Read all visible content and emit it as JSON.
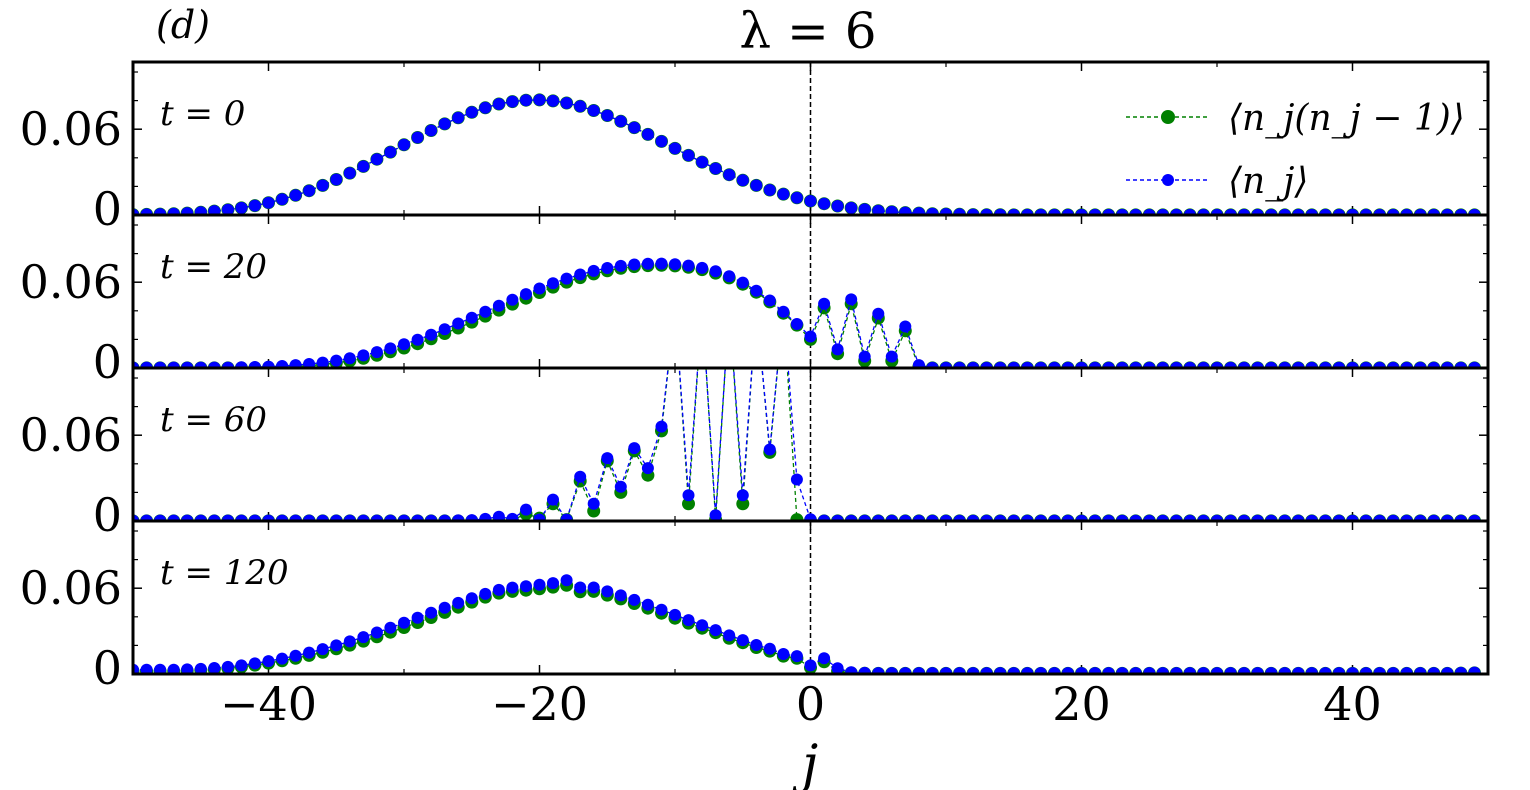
{
  "panel_tag": "(d)",
  "title": "λ = 6",
  "xlabel": "j",
  "ytick_labels": [
    "0",
    "0.06"
  ],
  "xtick_labels": [
    "−40",
    "−20",
    "0",
    "20",
    "40"
  ],
  "legend": [
    {
      "label": "⟨n_j(n_j − 1)⟩",
      "color": "#008000",
      "series": "nn1"
    },
    {
      "label": "⟨n_j⟩",
      "color": "#0000ff",
      "series": "n"
    }
  ],
  "chart_data": {
    "type": "scatter",
    "xlim": [
      -50,
      50
    ],
    "ylim": [
      0,
      0.107
    ],
    "yticks": [
      0,
      0.06
    ],
    "xticks": [
      -40,
      -20,
      0,
      20,
      40
    ],
    "vline_x": 0,
    "panels": [
      {
        "label": "t = 0",
        "x_start": -50,
        "nn1": [
          0.0003,
          0.0004,
          0.0006,
          0.0009,
          0.0013,
          0.0019,
          0.0027,
          0.0037,
          0.005,
          0.0066,
          0.0086,
          0.011,
          0.0138,
          0.017,
          0.0207,
          0.0248,
          0.0293,
          0.034,
          0.039,
          0.044,
          0.0491,
          0.0542,
          0.0591,
          0.0637,
          0.068,
          0.0718,
          0.075,
          0.0776,
          0.0793,
          0.0803,
          0.0805,
          0.0798,
          0.0783,
          0.076,
          0.0731,
          0.0696,
          0.0655,
          0.0611,
          0.0564,
          0.0515,
          0.0466,
          0.0417,
          0.037,
          0.0325,
          0.0282,
          0.0243,
          0.0207,
          0.0175,
          0.0146,
          0.012,
          0.0098,
          0.0079,
          0.0063,
          0.005,
          0.0039,
          0.003,
          0.0023,
          0.0017,
          0.0013,
          0.0009,
          0.0007,
          0.0005,
          0.0003,
          0.0002,
          0.0002,
          0.0001,
          0.0001,
          0.0001,
          0.0001,
          0.0001,
          0.0001,
          0.0001,
          0.0001,
          0.0001,
          0.0001,
          0.0001,
          0.0001,
          0.0001,
          0.0001,
          0.0001,
          0.0001,
          0.0001,
          0.0001,
          0.0001,
          0.0001,
          0.0001,
          0.0001,
          0.0001,
          0.0001,
          0.0001,
          0.0001,
          0.0001,
          0.0001,
          0.0001,
          0.0001,
          0.0001,
          0.0001,
          0.0001,
          0.0001,
          0.0001
        ],
        "n": [
          0.0003,
          0.0004,
          0.0006,
          0.0009,
          0.0013,
          0.0019,
          0.0027,
          0.0037,
          0.005,
          0.0066,
          0.0086,
          0.011,
          0.0138,
          0.017,
          0.0207,
          0.0248,
          0.0293,
          0.034,
          0.039,
          0.044,
          0.0491,
          0.0542,
          0.0591,
          0.0637,
          0.068,
          0.0718,
          0.075,
          0.0776,
          0.0793,
          0.0803,
          0.0805,
          0.0798,
          0.0783,
          0.076,
          0.0731,
          0.0696,
          0.0655,
          0.0611,
          0.0564,
          0.0515,
          0.0466,
          0.0417,
          0.037,
          0.0325,
          0.0282,
          0.0243,
          0.0207,
          0.0175,
          0.0146,
          0.012,
          0.0098,
          0.0079,
          0.0063,
          0.005,
          0.0039,
          0.003,
          0.0023,
          0.0017,
          0.0013,
          0.0009,
          0.0007,
          0.0005,
          0.0003,
          0.0002,
          0.0002,
          0.0001,
          0.0001,
          0.0001,
          0.0001,
          0.0001,
          0.0001,
          0.0001,
          0.0001,
          0.0001,
          0.0001,
          0.0001,
          0.0001,
          0.0001,
          0.0001,
          0.0001,
          0.0001,
          0.0001,
          0.0001,
          0.0001,
          0.0001,
          0.0001,
          0.0001,
          0.0001,
          0.0001,
          0.0001,
          0.0001,
          0.0001,
          0.0001,
          0.0001,
          0.0001,
          0.0001,
          0.0001,
          0.0001,
          0.0001,
          0.0001
        ]
      },
      {
        "label": "t = 20",
        "x_start": -50,
        "nn1": [
          0.0001,
          0.0001,
          0.0001,
          0.0001,
          0.0001,
          0.0001,
          0.0001,
          0.0001,
          0.0001,
          0.0002,
          0.0003,
          0.0006,
          0.001,
          0.0016,
          0.0024,
          0.0036,
          0.005,
          0.0068,
          0.0089,
          0.0113,
          0.014,
          0.017,
          0.0204,
          0.0241,
          0.028,
          0.0321,
          0.0363,
          0.0405,
          0.0447,
          0.0488,
          0.0528,
          0.0566,
          0.0601,
          0.0632,
          0.0658,
          0.068,
          0.0697,
          0.0709,
          0.0716,
          0.0718,
          0.0714,
          0.0704,
          0.0688,
          0.0664,
          0.063,
          0.0586,
          0.053,
          0.0462,
          0.0383,
          0.03,
          0.02,
          0.042,
          0.01,
          0.045,
          0.005,
          0.035,
          0.005,
          0.026,
          0.0008,
          0.0001,
          0.0001,
          0.0001,
          0.0001,
          0.0001,
          0.0001,
          0.0001,
          0.0001,
          0.0001,
          0.0001,
          0.0001,
          0.0001,
          0.0001,
          0.0001,
          0.0001,
          0.0001,
          0.0001,
          0.0001,
          0.0001,
          0.0001,
          0.0001,
          0.0001,
          0.0001,
          0.0001,
          0.0001,
          0.0001,
          0.0001,
          0.0001,
          0.0001,
          0.0001,
          0.0001,
          0.0001,
          0.0001,
          0.0001,
          0.0001,
          0.0001,
          0.0001,
          0.0001,
          0.0001,
          0.0001,
          0.0001
        ],
        "n": [
          0.0003,
          0.0003,
          0.0003,
          0.0003,
          0.0003,
          0.0003,
          0.0003,
          0.0003,
          0.0005,
          0.0007,
          0.001,
          0.0014,
          0.002,
          0.0028,
          0.0038,
          0.0052,
          0.0068,
          0.0088,
          0.0111,
          0.0137,
          0.0166,
          0.0198,
          0.0233,
          0.0271,
          0.0311,
          0.0352,
          0.0394,
          0.0436,
          0.0477,
          0.0517,
          0.0556,
          0.0592,
          0.0625,
          0.0654,
          0.0679,
          0.0699,
          0.0714,
          0.0724,
          0.0729,
          0.073,
          0.0726,
          0.0716,
          0.07,
          0.0676,
          0.0642,
          0.0597,
          0.054,
          0.0472,
          0.0393,
          0.0308,
          0.022,
          0.045,
          0.013,
          0.048,
          0.008,
          0.038,
          0.008,
          0.029,
          0.002,
          0.0002,
          0.0002,
          0.0002,
          0.0002,
          0.0002,
          0.0002,
          0.0002,
          0.0002,
          0.0002,
          0.0002,
          0.0002,
          0.0002,
          0.0002,
          0.0002,
          0.0002,
          0.0002,
          0.0002,
          0.0002,
          0.0002,
          0.0002,
          0.0002,
          0.0002,
          0.0002,
          0.0002,
          0.0002,
          0.0002,
          0.0002,
          0.0002,
          0.0002,
          0.0002,
          0.0002,
          0.0002,
          0.0002,
          0.0002,
          0.0002,
          0.0002,
          0.0002,
          0.0002,
          0.0002,
          0.0002,
          0.0002
        ]
      },
      {
        "label": "t = 60",
        "x_start": -50,
        "nn1": [
          0.0001,
          0.0001,
          0.0001,
          0.0001,
          0.0001,
          0.0001,
          0.0001,
          0.0001,
          0.0001,
          0.0001,
          0.0001,
          0.0001,
          0.0001,
          0.0001,
          0.0001,
          0.0001,
          0.0001,
          0.0001,
          0.0001,
          0.0001,
          0.0001,
          0.0001,
          0.0001,
          0.0001,
          0.0001,
          0.0001,
          0.0001,
          0.0002,
          0.0006,
          0.005,
          0.002,
          0.012,
          0.001,
          0.028,
          0.007,
          0.042,
          0.02,
          0.049,
          0.032,
          0.063,
          0.15,
          0.012,
          0.15,
          0.001,
          0.15,
          0.012,
          0.15,
          0.048,
          0.15,
          0.001,
          0.0005,
          0.0001,
          0.0001,
          0.0001,
          0.0001,
          0.0001,
          0.0001,
          0.0001,
          0.0001,
          0.0001,
          0.0001,
          0.0001,
          0.0001,
          0.0001,
          0.0001,
          0.0001,
          0.0001,
          0.0001,
          0.0001,
          0.0001,
          0.0001,
          0.0001,
          0.0001,
          0.0001,
          0.0001,
          0.0001,
          0.0001,
          0.0001,
          0.0001,
          0.0001,
          0.0001,
          0.0001,
          0.0001,
          0.0001,
          0.0001,
          0.0001,
          0.0001,
          0.0001,
          0.0001,
          0.0001,
          0.0001,
          0.0001,
          0.0001,
          0.0001,
          0.0001,
          0.0001,
          0.0001,
          0.0001,
          0.0001,
          0.0001
        ],
        "n": [
          0.0003,
          0.0003,
          0.0003,
          0.0003,
          0.0003,
          0.0003,
          0.0003,
          0.0003,
          0.0003,
          0.0003,
          0.0003,
          0.0003,
          0.0003,
          0.0003,
          0.0003,
          0.0003,
          0.0003,
          0.0003,
          0.0003,
          0.0003,
          0.0003,
          0.0003,
          0.0003,
          0.0003,
          0.0004,
          0.0006,
          0.0015,
          0.003,
          0.0015,
          0.008,
          0.001,
          0.015,
          0.001,
          0.031,
          0.012,
          0.044,
          0.024,
          0.051,
          0.037,
          0.066,
          0.15,
          0.018,
          0.15,
          0.004,
          0.15,
          0.018,
          0.15,
          0.05,
          0.15,
          0.029,
          0.0012,
          0.0003,
          0.0002,
          0.0002,
          0.0002,
          0.0002,
          0.0002,
          0.0002,
          0.0002,
          0.0002,
          0.0002,
          0.0002,
          0.0002,
          0.0002,
          0.0002,
          0.0002,
          0.0002,
          0.0002,
          0.0002,
          0.0002,
          0.0002,
          0.0002,
          0.0002,
          0.0002,
          0.0002,
          0.0002,
          0.0002,
          0.0002,
          0.0002,
          0.0002,
          0.0002,
          0.0002,
          0.0002,
          0.0002,
          0.0002,
          0.0002,
          0.0002,
          0.0002,
          0.0002,
          0.0002,
          0.0002,
          0.0002,
          0.0002,
          0.0002,
          0.0002,
          0.0002,
          0.0002,
          0.0002,
          0.0002,
          0.0002
        ]
      },
      {
        "label": "t = 120",
        "x_start": -50,
        "nn1": [
          0.002,
          0.002,
          0.002,
          0.002,
          0.0022,
          0.0026,
          0.0032,
          0.004,
          0.005,
          0.0062,
          0.0076,
          0.0092,
          0.011,
          0.013,
          0.0152,
          0.0176,
          0.0202,
          0.023,
          0.026,
          0.0292,
          0.0325,
          0.036,
          0.0395,
          0.0431,
          0.0467,
          0.0503,
          0.0538,
          0.0566,
          0.0578,
          0.0586,
          0.0596,
          0.0608,
          0.062,
          0.0575,
          0.0578,
          0.0552,
          0.0525,
          0.0493,
          0.046,
          0.0425,
          0.039,
          0.0356,
          0.032,
          0.0289,
          0.025,
          0.0219,
          0.0185,
          0.016,
          0.0125,
          0.011,
          0.0045,
          0.0085,
          0.002,
          0.0008,
          0.0005,
          0.0004,
          0.0004,
          0.0004,
          0.0004,
          0.0004,
          0.0004,
          0.0004,
          0.0004,
          0.0004,
          0.0004,
          0.0004,
          0.0004,
          0.0004,
          0.0004,
          0.0004,
          0.0004,
          0.0004,
          0.0004,
          0.0004,
          0.0004,
          0.0004,
          0.0004,
          0.0004,
          0.0004,
          0.0004,
          0.0004,
          0.0004,
          0.0004,
          0.0004,
          0.0004,
          0.0004,
          0.0004,
          0.0004,
          0.0004,
          0.0004,
          0.0004,
          0.0004,
          0.0004,
          0.0004,
          0.0004,
          0.0004,
          0.0004,
          0.0004,
          0.0006,
          0.0008
        ],
        "n": [
          0.003,
          0.003,
          0.003,
          0.003,
          0.0032,
          0.0036,
          0.0042,
          0.005,
          0.006,
          0.0074,
          0.009,
          0.0108,
          0.0128,
          0.015,
          0.0174,
          0.02,
          0.0228,
          0.0258,
          0.029,
          0.0323,
          0.0358,
          0.0393,
          0.0428,
          0.0463,
          0.0497,
          0.053,
          0.056,
          0.0588,
          0.0604,
          0.0614,
          0.0624,
          0.0636,
          0.0655,
          0.0605,
          0.0605,
          0.0578,
          0.055,
          0.0518,
          0.0484,
          0.0449,
          0.0413,
          0.0377,
          0.0341,
          0.0307,
          0.027,
          0.0237,
          0.0203,
          0.0176,
          0.014,
          0.0125,
          0.006,
          0.011,
          0.004,
          0.0012,
          0.0008,
          0.0006,
          0.0006,
          0.0006,
          0.0006,
          0.0006,
          0.0006,
          0.0006,
          0.0006,
          0.0006,
          0.0006,
          0.0006,
          0.0006,
          0.0006,
          0.0006,
          0.0006,
          0.0006,
          0.0006,
          0.0006,
          0.0006,
          0.0006,
          0.0006,
          0.0006,
          0.0006,
          0.0006,
          0.0006,
          0.0006,
          0.0006,
          0.0006,
          0.0006,
          0.0006,
          0.0006,
          0.0006,
          0.0006,
          0.0006,
          0.0006,
          0.0006,
          0.0006,
          0.0006,
          0.0006,
          0.0006,
          0.0006,
          0.0006,
          0.0006,
          0.0008,
          0.001
        ]
      }
    ]
  }
}
